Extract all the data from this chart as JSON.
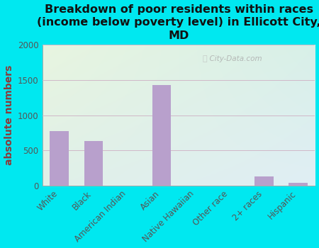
{
  "title": "Breakdown of poor residents within races\n(income below poverty level) in Ellicott City,\nMD",
  "categories": [
    "White",
    "Black",
    "American Indian",
    "Asian",
    "Native Hawaiian",
    "Other race",
    "2+ races",
    "Hispanic"
  ],
  "values": [
    780,
    630,
    0,
    1430,
    0,
    0,
    130,
    45
  ],
  "bar_color": "#b8a0cc",
  "ylabel": "absolute numbers",
  "ylim": [
    0,
    2000
  ],
  "yticks": [
    0,
    500,
    1000,
    1500,
    2000
  ],
  "background_outer": "#00e8f0",
  "plot_bg_top_left": "#e8f5e0",
  "plot_bg_bottom_right": "#e0f0f0",
  "grid_color": "#d0b8c8",
  "watermark": "City-Data.com",
  "title_fontsize": 11.5,
  "ylabel_fontsize": 10,
  "tick_fontsize": 8.5,
  "ylabel_color": "#8B3a3a",
  "title_color": "#111111",
  "tick_color": "#555555"
}
